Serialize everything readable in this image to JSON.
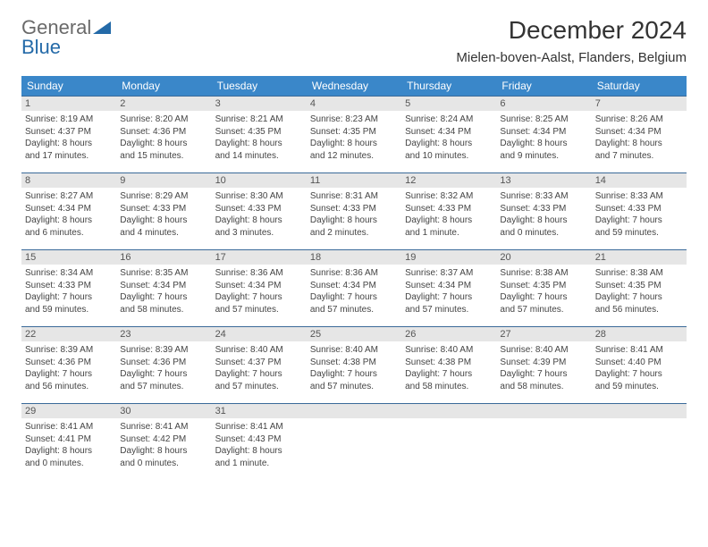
{
  "logo": {
    "line1": "General",
    "line2": "Blue"
  },
  "title": "December 2024",
  "location": "Mielen-boven-Aalst, Flanders, Belgium",
  "colors": {
    "header_bg": "#3a87c9",
    "header_text": "#ffffff",
    "daynum_bg": "#e6e6e6",
    "rule": "#3a6a99",
    "logo_blue": "#246aa8",
    "logo_gray": "#6a6a6a"
  },
  "weekdays": [
    "Sunday",
    "Monday",
    "Tuesday",
    "Wednesday",
    "Thursday",
    "Friday",
    "Saturday"
  ],
  "weeks": [
    [
      {
        "n": "1",
        "sr": "Sunrise: 8:19 AM",
        "ss": "Sunset: 4:37 PM",
        "d1": "Daylight: 8 hours",
        "d2": "and 17 minutes."
      },
      {
        "n": "2",
        "sr": "Sunrise: 8:20 AM",
        "ss": "Sunset: 4:36 PM",
        "d1": "Daylight: 8 hours",
        "d2": "and 15 minutes."
      },
      {
        "n": "3",
        "sr": "Sunrise: 8:21 AM",
        "ss": "Sunset: 4:35 PM",
        "d1": "Daylight: 8 hours",
        "d2": "and 14 minutes."
      },
      {
        "n": "4",
        "sr": "Sunrise: 8:23 AM",
        "ss": "Sunset: 4:35 PM",
        "d1": "Daylight: 8 hours",
        "d2": "and 12 minutes."
      },
      {
        "n": "5",
        "sr": "Sunrise: 8:24 AM",
        "ss": "Sunset: 4:34 PM",
        "d1": "Daylight: 8 hours",
        "d2": "and 10 minutes."
      },
      {
        "n": "6",
        "sr": "Sunrise: 8:25 AM",
        "ss": "Sunset: 4:34 PM",
        "d1": "Daylight: 8 hours",
        "d2": "and 9 minutes."
      },
      {
        "n": "7",
        "sr": "Sunrise: 8:26 AM",
        "ss": "Sunset: 4:34 PM",
        "d1": "Daylight: 8 hours",
        "d2": "and 7 minutes."
      }
    ],
    [
      {
        "n": "8",
        "sr": "Sunrise: 8:27 AM",
        "ss": "Sunset: 4:34 PM",
        "d1": "Daylight: 8 hours",
        "d2": "and 6 minutes."
      },
      {
        "n": "9",
        "sr": "Sunrise: 8:29 AM",
        "ss": "Sunset: 4:33 PM",
        "d1": "Daylight: 8 hours",
        "d2": "and 4 minutes."
      },
      {
        "n": "10",
        "sr": "Sunrise: 8:30 AM",
        "ss": "Sunset: 4:33 PM",
        "d1": "Daylight: 8 hours",
        "d2": "and 3 minutes."
      },
      {
        "n": "11",
        "sr": "Sunrise: 8:31 AM",
        "ss": "Sunset: 4:33 PM",
        "d1": "Daylight: 8 hours",
        "d2": "and 2 minutes."
      },
      {
        "n": "12",
        "sr": "Sunrise: 8:32 AM",
        "ss": "Sunset: 4:33 PM",
        "d1": "Daylight: 8 hours",
        "d2": "and 1 minute."
      },
      {
        "n": "13",
        "sr": "Sunrise: 8:33 AM",
        "ss": "Sunset: 4:33 PM",
        "d1": "Daylight: 8 hours",
        "d2": "and 0 minutes."
      },
      {
        "n": "14",
        "sr": "Sunrise: 8:33 AM",
        "ss": "Sunset: 4:33 PM",
        "d1": "Daylight: 7 hours",
        "d2": "and 59 minutes."
      }
    ],
    [
      {
        "n": "15",
        "sr": "Sunrise: 8:34 AM",
        "ss": "Sunset: 4:33 PM",
        "d1": "Daylight: 7 hours",
        "d2": "and 59 minutes."
      },
      {
        "n": "16",
        "sr": "Sunrise: 8:35 AM",
        "ss": "Sunset: 4:34 PM",
        "d1": "Daylight: 7 hours",
        "d2": "and 58 minutes."
      },
      {
        "n": "17",
        "sr": "Sunrise: 8:36 AM",
        "ss": "Sunset: 4:34 PM",
        "d1": "Daylight: 7 hours",
        "d2": "and 57 minutes."
      },
      {
        "n": "18",
        "sr": "Sunrise: 8:36 AM",
        "ss": "Sunset: 4:34 PM",
        "d1": "Daylight: 7 hours",
        "d2": "and 57 minutes."
      },
      {
        "n": "19",
        "sr": "Sunrise: 8:37 AM",
        "ss": "Sunset: 4:34 PM",
        "d1": "Daylight: 7 hours",
        "d2": "and 57 minutes."
      },
      {
        "n": "20",
        "sr": "Sunrise: 8:38 AM",
        "ss": "Sunset: 4:35 PM",
        "d1": "Daylight: 7 hours",
        "d2": "and 57 minutes."
      },
      {
        "n": "21",
        "sr": "Sunrise: 8:38 AM",
        "ss": "Sunset: 4:35 PM",
        "d1": "Daylight: 7 hours",
        "d2": "and 56 minutes."
      }
    ],
    [
      {
        "n": "22",
        "sr": "Sunrise: 8:39 AM",
        "ss": "Sunset: 4:36 PM",
        "d1": "Daylight: 7 hours",
        "d2": "and 56 minutes."
      },
      {
        "n": "23",
        "sr": "Sunrise: 8:39 AM",
        "ss": "Sunset: 4:36 PM",
        "d1": "Daylight: 7 hours",
        "d2": "and 57 minutes."
      },
      {
        "n": "24",
        "sr": "Sunrise: 8:40 AM",
        "ss": "Sunset: 4:37 PM",
        "d1": "Daylight: 7 hours",
        "d2": "and 57 minutes."
      },
      {
        "n": "25",
        "sr": "Sunrise: 8:40 AM",
        "ss": "Sunset: 4:38 PM",
        "d1": "Daylight: 7 hours",
        "d2": "and 57 minutes."
      },
      {
        "n": "26",
        "sr": "Sunrise: 8:40 AM",
        "ss": "Sunset: 4:38 PM",
        "d1": "Daylight: 7 hours",
        "d2": "and 58 minutes."
      },
      {
        "n": "27",
        "sr": "Sunrise: 8:40 AM",
        "ss": "Sunset: 4:39 PM",
        "d1": "Daylight: 7 hours",
        "d2": "and 58 minutes."
      },
      {
        "n": "28",
        "sr": "Sunrise: 8:41 AM",
        "ss": "Sunset: 4:40 PM",
        "d1": "Daylight: 7 hours",
        "d2": "and 59 minutes."
      }
    ],
    [
      {
        "n": "29",
        "sr": "Sunrise: 8:41 AM",
        "ss": "Sunset: 4:41 PM",
        "d1": "Daylight: 8 hours",
        "d2": "and 0 minutes."
      },
      {
        "n": "30",
        "sr": "Sunrise: 8:41 AM",
        "ss": "Sunset: 4:42 PM",
        "d1": "Daylight: 8 hours",
        "d2": "and 0 minutes."
      },
      {
        "n": "31",
        "sr": "Sunrise: 8:41 AM",
        "ss": "Sunset: 4:43 PM",
        "d1": "Daylight: 8 hours",
        "d2": "and 1 minute."
      },
      {
        "empty": true
      },
      {
        "empty": true
      },
      {
        "empty": true
      },
      {
        "empty": true
      }
    ]
  ]
}
